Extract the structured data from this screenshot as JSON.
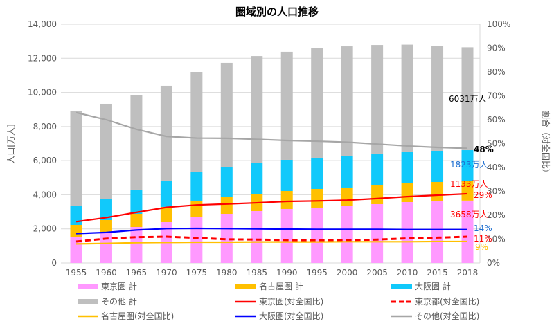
{
  "chart_data": {
    "type": "bar",
    "title": "圏域別の人口推移",
    "ylabel": "人口[万人]",
    "y2label": "割合（対全国比）",
    "ylim": [
      0,
      14000
    ],
    "y2lim": [
      0,
      100
    ],
    "yticks": [
      "0",
      "2,000",
      "4,000",
      "6,000",
      "8,000",
      "10,000",
      "12,000",
      "14,000"
    ],
    "y2ticks": [
      "0%",
      "10%",
      "20%",
      "30%",
      "40%",
      "50%",
      "60%",
      "70%",
      "80%",
      "90%",
      "100%"
    ],
    "grid": true,
    "legend_placement": "bottom",
    "categories": [
      "1955",
      "1960",
      "1965",
      "1970",
      "1975",
      "1980",
      "1985",
      "1990",
      "1995",
      "2000",
      "2005",
      "2010",
      "2015",
      "2018"
    ],
    "bar_series": [
      {
        "name": "東京圏 計",
        "color": "#ff99ff",
        "values": [
          1542,
          1745,
          2110,
          2394,
          2719,
          2881,
          3044,
          3166,
          3247,
          3368,
          3450,
          3571,
          3612,
          3658
        ]
      },
      {
        "name": "名古屋圏 計",
        "color": "#ffc000",
        "values": [
          690,
          771,
          771,
          896,
          934,
          974,
          974,
          1054,
          1095,
          1056,
          1095,
          1096,
          1136,
          1133
        ]
      },
      {
        "name": "大阪圏 計",
        "color": "#11c9fb",
        "values": [
          1096,
          1218,
          1421,
          1540,
          1664,
          1745,
          1826,
          1827,
          1827,
          1866,
          1867,
          1867,
          1827,
          1823
        ]
      },
      {
        "name": "その他 計",
        "color": "#bfbfbf",
        "values": [
          5600,
          5600,
          5518,
          5560,
          5883,
          6130,
          6286,
          6333,
          6411,
          6410,
          6368,
          6266,
          6135,
          6031
        ]
      }
    ],
    "line_series": [
      {
        "name": "東京圏(対全国比)",
        "color": "#ff0000",
        "dash": false,
        "values": [
          17.3,
          19,
          21.2,
          23.3,
          24.3,
          24.7,
          25.2,
          25.8,
          26,
          26.3,
          27,
          27.8,
          28.4,
          29
        ]
      },
      {
        "name": "東京都(対全国比)",
        "color": "#ff0000",
        "dash": true,
        "values": [
          9,
          10.2,
          10.8,
          11,
          10.5,
          9.9,
          9.8,
          9.6,
          9.4,
          9.5,
          9.8,
          10.3,
          10.6,
          11
        ]
      },
      {
        "name": "名古屋圏(対全国比)",
        "color": "#ffc000",
        "dash": false,
        "values": [
          8,
          8.2,
          8.5,
          8.6,
          8.7,
          8.7,
          8.8,
          8.8,
          8.8,
          8.9,
          8.9,
          8.9,
          9,
          9
        ]
      },
      {
        "name": "大阪圏(対全国比)",
        "color": "#0000ff",
        "dash": false,
        "values": [
          12.3,
          12.8,
          13.8,
          14.4,
          14.5,
          14.4,
          14.3,
          14.2,
          14.1,
          14.1,
          14.1,
          14,
          14,
          14
        ]
      },
      {
        "name": "その他(対全国比)",
        "color": "#a6a6a6",
        "dash": false,
        "values": [
          63,
          60,
          56,
          53,
          52.3,
          52.2,
          51.8,
          51.3,
          51,
          50.6,
          49.8,
          49,
          48.4,
          48
        ]
      }
    ],
    "annotations": [
      {
        "text": "6031万人",
        "color": "#000000"
      },
      {
        "text": "48%",
        "color": "#000000"
      },
      {
        "text": "1823万人",
        "color": "#1f6fd0"
      },
      {
        "text": "1133万人",
        "color": "#ff0000"
      },
      {
        "text": "29%",
        "color": "#ff0000"
      },
      {
        "text": "3658万人",
        "color": "#ff0000"
      },
      {
        "text": "14%",
        "color": "#1f6fd0"
      },
      {
        "text": "11%",
        "color": "#ff0000"
      },
      {
        "text": "9%",
        "color": "#ffc000"
      }
    ],
    "legend": [
      "東京圏 計",
      "名古屋圏 計",
      "大阪圏 計",
      "その他 計",
      "東京圏(対全国比)",
      "東京都(対全国比)",
      "名古屋圏(対全国比)",
      "大阪圏(対全国比)",
      "その他(対全国比)"
    ]
  }
}
